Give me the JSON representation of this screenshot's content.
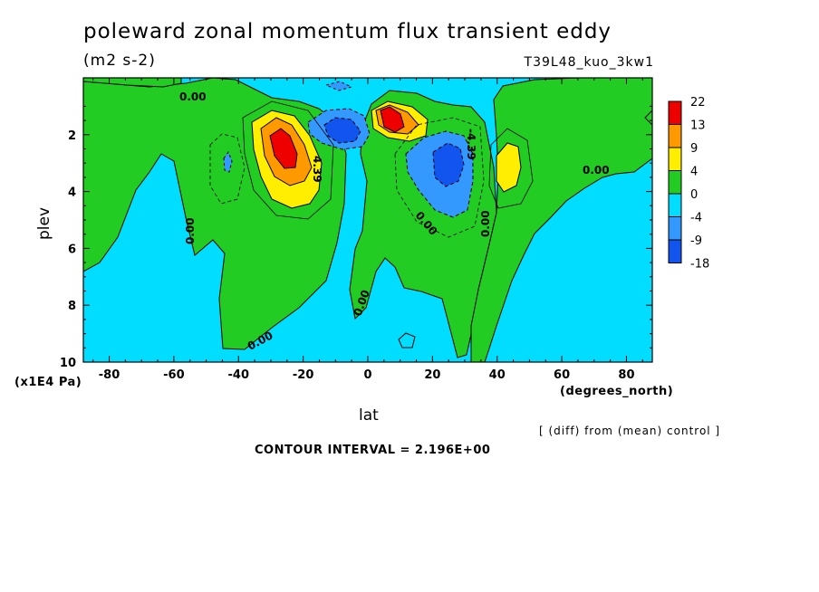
{
  "header": {
    "title": "poleward zonal momentum flux transient eddy",
    "units": "(m2 s-2)",
    "run_id": "T39L48_kuo_3kw1"
  },
  "footer": {
    "diff_note": "[ (diff) from (mean) control ]",
    "contour_interval": "CONTOUR INTERVAL = 2.196E+00"
  },
  "chart_data": {
    "type": "heatmap",
    "title": "poleward zonal momentum flux transient eddy",
    "xlabel": "lat",
    "x_unit": "(degrees_north)",
    "ylabel": "plev",
    "y_unit": "(x1E4 Pa)",
    "xlim": [
      -88,
      88
    ],
    "ylim": [
      0,
      10
    ],
    "y_inverted": true,
    "x_ticks": [
      -80,
      -60,
      -40,
      -20,
      0,
      20,
      40,
      60,
      80
    ],
    "y_ticks": [
      2,
      4,
      6,
      8,
      10
    ],
    "background_level": "-4 to 0",
    "colorbar": {
      "levels": [
        "22",
        "13",
        "9",
        "4",
        "0",
        "-4",
        "-9",
        "-18"
      ],
      "colors": [
        "#ee0000",
        "#ff9900",
        "#ffee00",
        "#22cc22",
        "#00ddff",
        "#3399ff",
        "#1155ee"
      ]
    },
    "features": [
      {
        "kind": "max",
        "lat": -27,
        "plev": 2.5,
        "level": "22"
      },
      {
        "kind": "max",
        "lat": 6,
        "plev": 1.8,
        "level": "22"
      },
      {
        "kind": "max",
        "lat": 45,
        "plev": 3.0,
        "level": "9"
      },
      {
        "kind": "min",
        "lat": -8,
        "plev": 1.9,
        "level": "-9"
      },
      {
        "kind": "min",
        "lat": 27,
        "plev": 3.2,
        "level": "-9"
      },
      {
        "kind": "min",
        "lat": -44,
        "plev": 3.0,
        "level": "-4"
      }
    ],
    "annotations": [
      "0.00",
      "0.00",
      "0.00",
      "0.00",
      "0.00",
      "0.00",
      "0.00",
      "4.39",
      "-4.39"
    ]
  }
}
